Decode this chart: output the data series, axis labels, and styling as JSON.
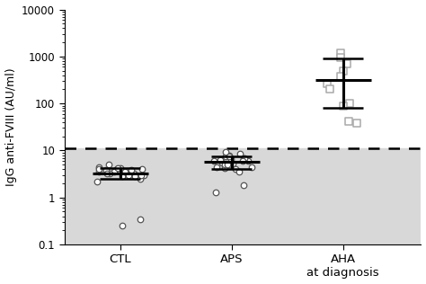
{
  "ctl_points": [
    3.5,
    3.2,
    4.0,
    3.8,
    3.0,
    2.8,
    3.5,
    4.5,
    5.0,
    4.2,
    3.0,
    2.8,
    3.5,
    4.0,
    3.2,
    2.5,
    3.8,
    4.3,
    3.0,
    2.2,
    3.5,
    4.0,
    3.2,
    0.25,
    0.35
  ],
  "ctl_median": 3.3,
  "ctl_iqr_low": 2.5,
  "ctl_iqr_high": 4.2,
  "aps_points": [
    6.0,
    5.2,
    7.0,
    8.5,
    5.5,
    4.5,
    6.5,
    7.5,
    5.0,
    4.2,
    6.0,
    7.0,
    5.5,
    4.0,
    6.2,
    8.0,
    5.0,
    3.5,
    9.5,
    7.5,
    6.0,
    5.0,
    4.5,
    1.3,
    1.8
  ],
  "aps_median": 5.8,
  "aps_iqr_low": 4.0,
  "aps_iqr_high": 7.5,
  "aha_points": [
    1200.0,
    950.0,
    700.0,
    500.0,
    380.0,
    270.0,
    200.0,
    100.0,
    90.0,
    42.0,
    38.0
  ],
  "aha_median": 310.0,
  "aha_iqr_low": 82.0,
  "aha_iqr_high": 900.0,
  "dashed_line_y": 11.0,
  "ylim_low": 0.1,
  "ylim_high": 10000,
  "ylabel": "IgG anti-FVIII (AU/ml)",
  "categories": [
    "CTL",
    "APS",
    "AHA\nat diagnosis"
  ],
  "x_positions": [
    1,
    2,
    3
  ],
  "shaded_bg_color": "#d8d8d8",
  "point_edge_color": "#555555",
  "point_edge_color_aha": "#aaaaaa",
  "bar_color": "#000000",
  "dashed_line_color": "#000000",
  "bg_color": "#ffffff"
}
